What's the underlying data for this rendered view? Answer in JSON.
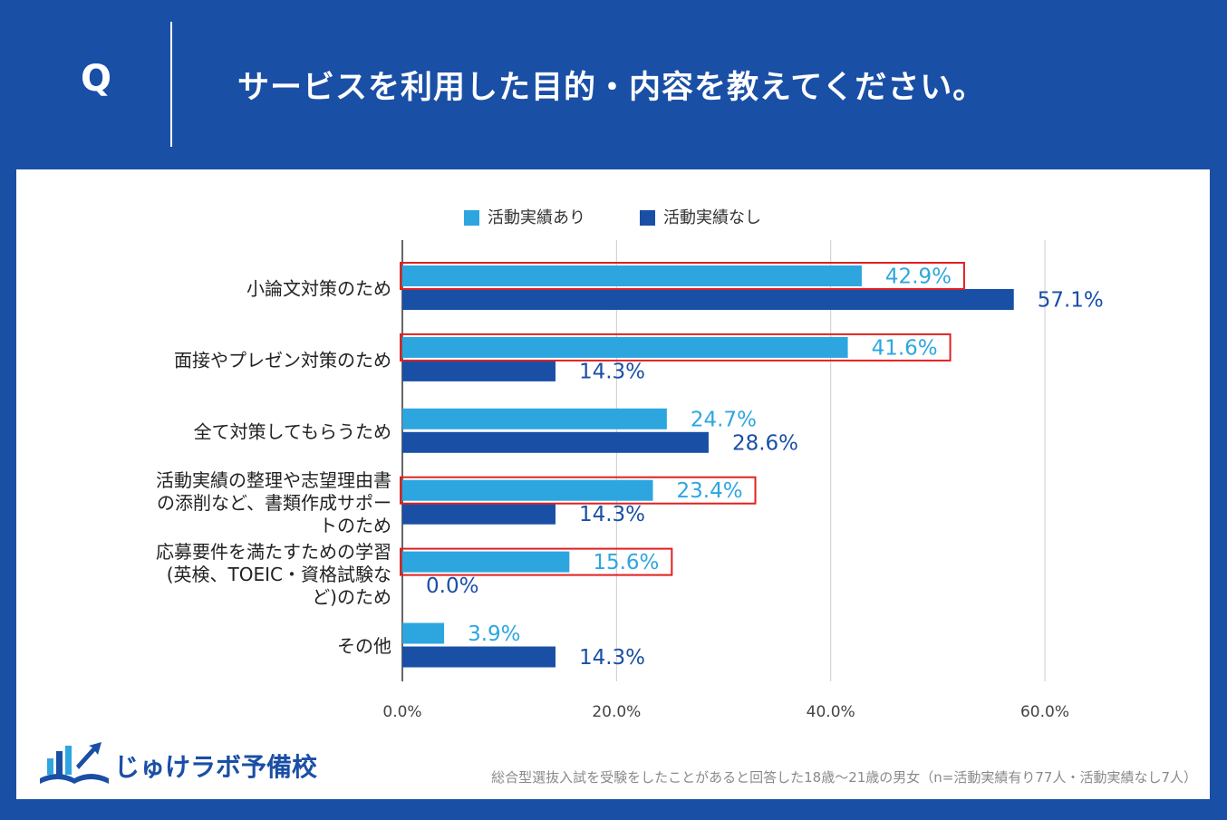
{
  "header": {
    "q_label": "Q",
    "title": "サービスを利用した目的・内容を教えてください。"
  },
  "colors": {
    "background": "#1a4fa6",
    "series_light": "#2da6e0",
    "series_dark": "#1a4fa6",
    "highlight_box": "#e02020"
  },
  "chart_data": {
    "type": "bar",
    "orientation": "horizontal",
    "categories": [
      "小論文対策のため",
      "面接やプレゼン対策のため",
      "全て対策してもらうため",
      "活動実績の整理や志望理由書の添削など、書類作成サポートのため",
      "応募要件を満たすための学習(英検、TOEIC・資格試験など)のため",
      "その他"
    ],
    "category_lines": [
      [
        "小論文対策のため"
      ],
      [
        "面接やプレゼン対策のため"
      ],
      [
        "全て対策してもらうため"
      ],
      [
        "活動実績の整理や志望理由書",
        "の添削など、書類作成サポー",
        "トのため"
      ],
      [
        "応募要件を満たすための学習",
        "(英検、TOEIC・資格試験な",
        "ど)のため"
      ],
      [
        "その他"
      ]
    ],
    "series": [
      {
        "name": "活動実績あり",
        "values": [
          42.9,
          41.6,
          24.7,
          23.4,
          15.6,
          3.9
        ]
      },
      {
        "name": "活動実績なし",
        "values": [
          57.1,
          14.3,
          28.6,
          14.3,
          0.0,
          14.3
        ]
      }
    ],
    "value_labels": [
      [
        "42.9%",
        "41.6%",
        "24.7%",
        "23.4%",
        "15.6%",
        "3.9%"
      ],
      [
        "57.1%",
        "14.3%",
        "28.6%",
        "14.3%",
        "0.0%",
        "14.3%"
      ]
    ],
    "highlighted_categories": [
      0,
      1,
      3,
      4
    ],
    "xlim": [
      0,
      60
    ],
    "x_ticks": [
      0,
      20,
      40,
      60
    ],
    "x_tick_labels": [
      "0.0%",
      "20.0%",
      "40.0%",
      "60.0%"
    ],
    "grid": true,
    "legend_position": "top"
  },
  "footnote": "総合型選抜入試を受験をしたことがあると回答した18歳〜21歳の男女（n=活動実績有り77人・活動実績なし7人）",
  "logo": {
    "text": "じゅけラボ予備校"
  }
}
